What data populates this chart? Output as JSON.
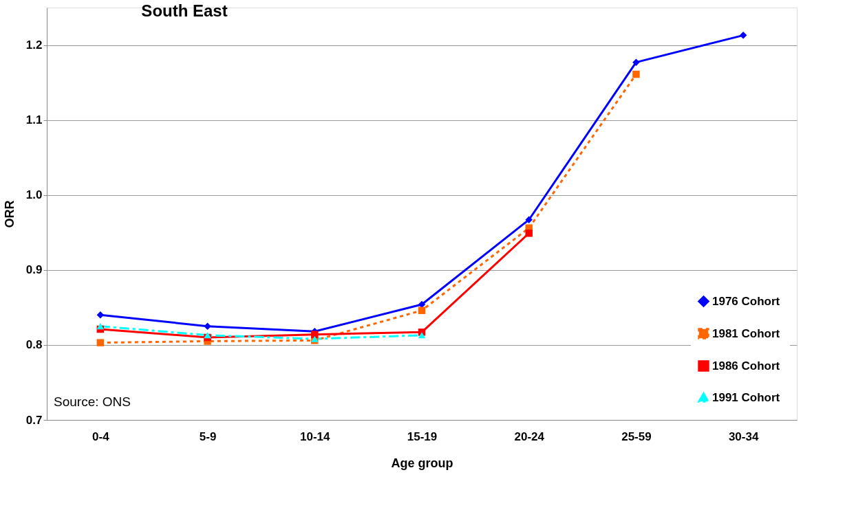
{
  "chart_data": {
    "type": "line",
    "title": "South East",
    "xlabel": "Age group",
    "ylabel": "ORR",
    "categories": [
      "0-4",
      "5-9",
      "10-14",
      "15-19",
      "20-24",
      "25-59",
      "30-34"
    ],
    "series": [
      {
        "name": "1976  Cohort",
        "color": "#0000ff",
        "marker": "diamond",
        "line_style": "solid",
        "values": [
          0.84,
          0.825,
          0.818,
          0.854,
          0.967,
          1.177,
          1.213
        ]
      },
      {
        "name": "1981  Cohort",
        "color": "#ff6600",
        "marker": "square",
        "line_style": "dotted",
        "values": [
          0.803,
          0.805,
          0.806,
          0.846,
          0.956,
          1.161,
          null
        ]
      },
      {
        "name": "1986  Cohort",
        "color": "#ff0000",
        "marker": "square",
        "line_style": "solid",
        "values": [
          0.821,
          0.81,
          0.814,
          0.817,
          0.949,
          null,
          null
        ]
      },
      {
        "name": "1991 Cohort",
        "color": "#00ffff",
        "marker": "triangle",
        "line_style": "dashed",
        "values": [
          0.825,
          0.813,
          0.808,
          0.813,
          null,
          null,
          null
        ]
      }
    ],
    "ylim": [
      0.7,
      1.25
    ],
    "yticks": [
      {
        "value": 0.7,
        "label": "0.7"
      },
      {
        "value": 0.8,
        "label": "0.8"
      },
      {
        "value": 0.9,
        "label": "0.9"
      },
      {
        "value": 1.0,
        "label": "1.0"
      },
      {
        "value": 1.1,
        "label": "1.1"
      },
      {
        "value": 1.2,
        "label": "1.2"
      }
    ],
    "grid": "y",
    "legend": "bottom right",
    "annotations": [
      "Source: ONS"
    ]
  }
}
